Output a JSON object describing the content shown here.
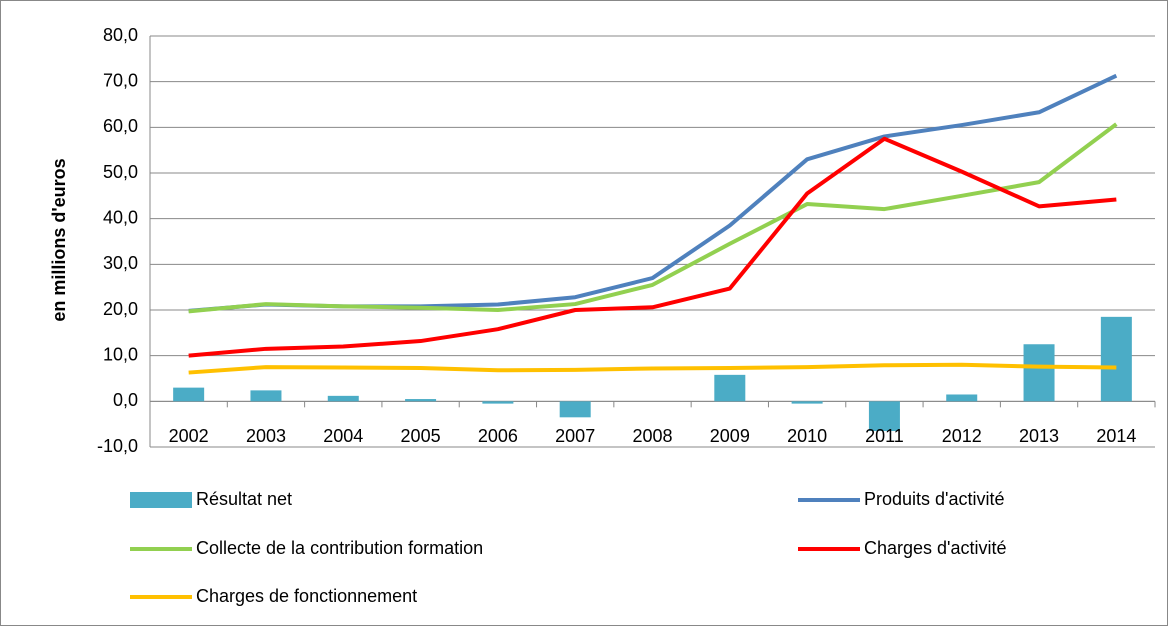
{
  "chart_data": {
    "type": "line",
    "ylabel": "en millions d'euros",
    "categories": [
      "2002",
      "2003",
      "2004",
      "2005",
      "2006",
      "2007",
      "2008",
      "2009",
      "2010",
      "2011",
      "2012",
      "2013",
      "2014"
    ],
    "series": [
      {
        "name": "Résultat net",
        "type": "bar",
        "color": "#4bacc6",
        "values": [
          3.0,
          2.4,
          1.2,
          0.5,
          -0.5,
          -3.5,
          0,
          5.8,
          -0.5,
          -6.5,
          1.5,
          12.5,
          18.5
        ]
      },
      {
        "name": "Produits d'activité",
        "type": "line",
        "color": "#4f81bd",
        "values": [
          19.8,
          21.2,
          20.8,
          20.8,
          21.2,
          22.8,
          27.0,
          38.5,
          53.0,
          58.0,
          60.5,
          63.3,
          71.3
        ]
      },
      {
        "name": "Collecte de la contribution formation",
        "type": "line",
        "color": "#92d050",
        "values": [
          19.7,
          21.3,
          20.8,
          20.5,
          20.0,
          21.3,
          25.5,
          34.5,
          43.2,
          42.1,
          45.0,
          48.0,
          60.7
        ]
      },
      {
        "name": "Charges d'activité",
        "type": "line",
        "color": "#ff0000",
        "values": [
          10.0,
          11.5,
          12.0,
          13.2,
          15.8,
          20.0,
          20.6,
          24.7,
          45.5,
          57.5,
          50.3,
          42.7,
          44.2
        ]
      },
      {
        "name": "Charges de fonctionnement",
        "type": "line",
        "color": "#ffc000",
        "values": [
          6.3,
          7.5,
          7.4,
          7.3,
          6.8,
          6.9,
          7.2,
          7.3,
          7.5,
          7.9,
          8.0,
          7.6,
          7.4
        ]
      }
    ],
    "ylim": [
      -10,
      80
    ],
    "yticks": [
      {
        "value": -10,
        "label": "-10,0"
      },
      {
        "value": 0,
        "label": "0,0"
      },
      {
        "value": 10,
        "label": "10,0"
      },
      {
        "value": 20,
        "label": "20,0"
      },
      {
        "value": 30,
        "label": "30,0"
      },
      {
        "value": 40,
        "label": "40,0"
      },
      {
        "value": 50,
        "label": "50,0"
      },
      {
        "value": 60,
        "label": "60,0"
      },
      {
        "value": 70,
        "label": "70,0"
      },
      {
        "value": 80,
        "label": "80,0"
      }
    ],
    "grid": true,
    "legend": "bottom"
  }
}
